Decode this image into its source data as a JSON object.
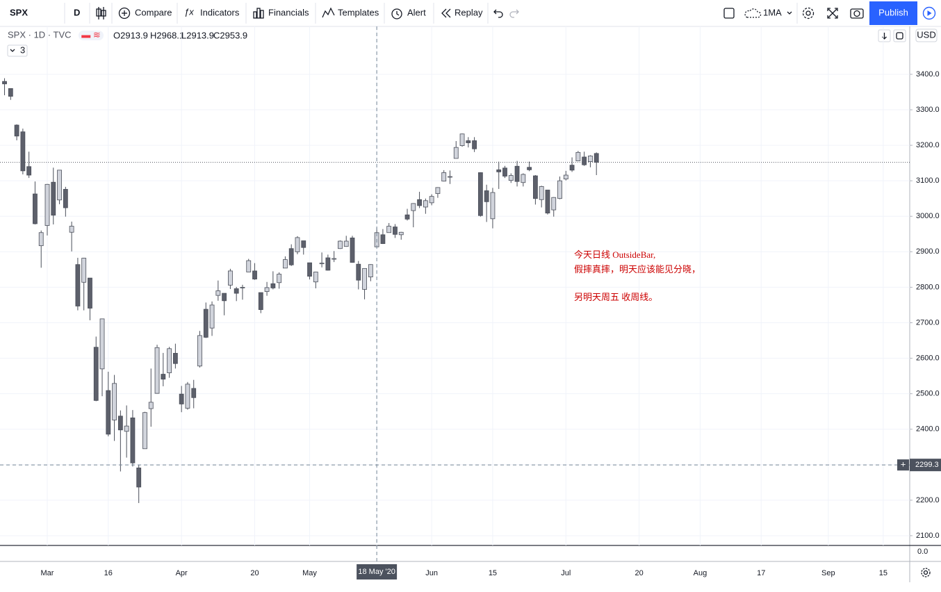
{
  "toolbar": {
    "symbol": "SPX",
    "interval": "D",
    "buttons": [
      "Compare",
      "Indicators",
      "Financials",
      "Templates",
      "Alert",
      "Replay"
    ],
    "indicator": "1MA",
    "publish": "Publish"
  },
  "legend": {
    "symbol_line": "SPX · 1D · TVC",
    "ohlc": [
      "O2913.9",
      "H2968.1",
      "L2913.9",
      "C2953.9"
    ],
    "collapse": "3"
  },
  "scale": {
    "currency": "USD"
  },
  "indicator_pane": {
    "ytick": {
      "value": 0,
      "label": "0.0"
    }
  },
  "chart_data": {
    "type": "candlestick",
    "categories": [
      null,
      null,
      null,
      null,
      null,
      null,
      null,
      "Mar",
      null,
      null,
      null,
      null,
      null,
      null,
      null,
      null,
      null,
      "16",
      null,
      null,
      null,
      null,
      null,
      null,
      null,
      null,
      null,
      null,
      null,
      "Apr",
      null,
      null,
      null,
      null,
      null,
      null,
      null,
      null,
      null,
      null,
      null,
      "20",
      null,
      null,
      null,
      null,
      null,
      null,
      null,
      null,
      "May",
      null,
      null,
      null,
      null,
      null,
      null,
      null,
      null,
      null,
      null,
      "18 May '20",
      null,
      null,
      null,
      null,
      null,
      null,
      null,
      null,
      "Jun",
      null,
      null,
      null,
      null,
      null,
      null,
      null,
      null,
      null,
      "15",
      null,
      null,
      null,
      null,
      null,
      null,
      null,
      null,
      null,
      null,
      null,
      "Jul",
      null,
      null,
      null,
      null,
      null,
      null,
      null,
      null,
      null,
      null,
      null,
      "20",
      null,
      null,
      null,
      null,
      null,
      null,
      null,
      null,
      null,
      "Aug",
      null,
      null,
      null,
      null,
      null,
      null,
      null,
      null,
      null,
      "17",
      null,
      null,
      null,
      null,
      null,
      null,
      null,
      null,
      null,
      null,
      "Sep",
      null,
      null,
      null,
      null,
      null,
      null,
      null,
      null,
      "15",
      null,
      null,
      null
    ],
    "open": [
      3380,
      3360,
      3257,
      3238,
      3140,
      3063,
      2917,
      2974,
      3096,
      3046,
      3076,
      2955,
      2864,
      2814,
      2826,
      2631,
      2570,
      2509,
      2426,
      2437,
      2394,
      2432,
      2291,
      2345,
      2458,
      2501,
      2555,
      2559,
      2614,
      2499,
      2459,
      2515,
      2578,
      2738,
      2685,
      2777,
      2783,
      2806,
      2796,
      2799,
      2843,
      2846,
      2785,
      2788,
      2810,
      2813,
      2854,
      2909,
      2900,
      2931,
      2869,
      2815,
      2868,
      2883,
      2879,
      2909,
      2915,
      2939,
      2865,
      2794,
      2829,
      2913.9,
      2948,
      2954,
      2970,
      2948,
      3004,
      3016,
      3047,
      3026,
      3038,
      3064,
      3099,
      3112,
      3163,
      3199,
      3213,
      3213,
      3123,
      3072,
      2993,
      3131,
      3136,
      3101,
      3141,
      3095,
      3138,
      3114,
      3047,
      3074,
      3018,
      3050,
      3105,
      3144,
      3156,
      3167,
      3154,
      3177,
      null,
      null,
      null,
      null,
      null,
      null,
      null,
      null,
      null,
      null,
      null,
      null,
      null,
      null,
      null,
      null,
      null,
      null,
      null,
      null,
      null,
      null,
      null,
      null,
      null,
      null,
      null,
      null,
      null,
      null,
      null,
      null,
      null,
      null,
      null,
      null,
      null,
      null,
      null,
      null,
      null,
      null,
      null,
      null,
      null,
      null,
      null,
      null,
      null,
      null
    ],
    "high": [
      3389,
      3360,
      3259,
      3247,
      3182,
      3098,
      2960,
      3091,
      3137,
      3130,
      3083,
      2985,
      2883,
      2883,
      2826,
      2661,
      2711,
      2562,
      2553,
      2453,
      2467,
      2454,
      2300,
      2449,
      2571,
      2638,
      2615,
      2632,
      2641,
      2522,
      2533,
      2539,
      2677,
      2757,
      2760,
      2819,
      2783,
      2852,
      2801,
      2807,
      2880,
      2868,
      2785,
      2815,
      2845,
      2842,
      2887,
      2921,
      2944,
      2931,
      2869,
      2844,
      2898,
      2892,
      2902,
      2932,
      2945,
      2945,
      2874,
      2852,
      2865,
      2968.1,
      2964,
      2981,
      2978,
      2956,
      3021,
      3037,
      3069,
      3050,
      3062,
      3082,
      3130,
      3129,
      3212,
      3233,
      3223,
      3223,
      3124,
      3089,
      3080,
      3154,
      3142,
      3121,
      3156,
      3121,
      3154,
      3116,
      3086,
      3074,
      3054,
      3112,
      3128,
      3166,
      3184,
      3182,
      3172,
      3180,
      null,
      null,
      null,
      null,
      null,
      null,
      null,
      null,
      null,
      null,
      null,
      null,
      null,
      null,
      null,
      null,
      null,
      null,
      null,
      null,
      null,
      null,
      null,
      null,
      null,
      null,
      null,
      null,
      null,
      null,
      null,
      null,
      null,
      null,
      null,
      null,
      null,
      null,
      null,
      null,
      null,
      null,
      null,
      null,
      null,
      null,
      null,
      null,
      null,
      null
    ],
    "low": [
      3341,
      3328,
      3214,
      3118,
      3108,
      2977,
      2855,
      2946,
      2977,
      3034,
      2999,
      2901,
      2735,
      2735,
      2707,
      2479,
      2493,
      2380,
      2367,
      2281,
      2320,
      2295,
      2192,
      2345,
      2407,
      2500,
      2521,
      2545,
      2571,
      2448,
      2455,
      2459,
      2574,
      2657,
      2663,
      2762,
      2721,
      2795,
      2761,
      2765,
      2843,
      2821,
      2727,
      2776,
      2794,
      2796,
      2854,
      2860,
      2893,
      2892,
      2822,
      2797,
      2856,
      2847,
      2871,
      2908,
      2914,
      2869,
      2794,
      2766,
      2817,
      2913.9,
      2922,
      2954,
      2939,
      2934,
      2988,
      2969,
      3023,
      3007,
      3031,
      3052,
      3098,
      3091,
      3163,
      3196,
      3194,
      3181,
      2999,
      2984,
      2966,
      3077,
      3108,
      3094,
      3084,
      3084,
      3127,
      3033,
      3025,
      3005,
      2999,
      3048,
      3101,
      3125,
      3156,
      3142,
      3138,
      3116,
      null,
      null,
      null,
      null,
      null,
      null,
      null,
      null,
      null,
      null,
      null,
      null,
      null,
      null,
      null,
      null,
      null,
      null,
      null,
      null,
      null,
      null,
      null,
      null,
      null,
      null,
      null,
      null,
      null,
      null,
      null,
      null,
      null,
      null,
      null,
      null,
      null,
      null,
      null,
      null,
      null,
      null,
      null,
      null,
      null,
      null,
      null,
      null,
      null,
      null
    ],
    "close": [
      3373,
      3338,
      3226,
      3128,
      3116,
      2979,
      2954,
      3090,
      3003,
      3130,
      3024,
      2972,
      2747,
      2882,
      2741,
      2481,
      2711,
      2386,
      2529,
      2398,
      2409,
      2305,
      2237,
      2447,
      2476,
      2630,
      2541,
      2627,
      2585,
      2471,
      2527,
      2489,
      2664,
      2659,
      2750,
      2790,
      2762,
      2846,
      2783,
      2800,
      2875,
      2823,
      2737,
      2799,
      2798,
      2837,
      2878,
      2863,
      2940,
      2912,
      2831,
      2843,
      2868,
      2848,
      2881,
      2930,
      2930,
      2870,
      2820,
      2853,
      2864,
      2953.9,
      2923,
      2972,
      2949,
      2955,
      2992,
      3036,
      3030,
      3044,
      3056,
      3081,
      3123,
      3112,
      3194,
      3232,
      3207,
      3190,
      3002,
      3041,
      3067,
      3125,
      3113,
      3115,
      3098,
      3118,
      3131,
      3050,
      3084,
      3009,
      3053,
      3100,
      3116,
      3130,
      3180,
      3145,
      3170,
      3152,
      null,
      null,
      null,
      null,
      null,
      null,
      null,
      null,
      null,
      null,
      null,
      null,
      null,
      null,
      null,
      null,
      null,
      null,
      null,
      null,
      null,
      null,
      null,
      null,
      null,
      null,
      null,
      null,
      null,
      null,
      null,
      null,
      null,
      null,
      null,
      null,
      null,
      null,
      null,
      null,
      null,
      null,
      null,
      null,
      null,
      null,
      null,
      null,
      null,
      null
    ],
    "ylim": [
      2072.5,
      3535
    ],
    "yticks": [
      {
        "value": 2100,
        "label": "2100.0"
      },
      {
        "value": 2200,
        "label": "2200.0"
      },
      {
        "value": 2300,
        "label": "2300.0"
      },
      {
        "value": 2400,
        "label": "2400.0"
      },
      {
        "value": 2500,
        "label": "2500.0"
      },
      {
        "value": 2600,
        "label": "2600.0"
      },
      {
        "value": 2700,
        "label": "2700.0"
      },
      {
        "value": 2800,
        "label": "2800.0"
      },
      {
        "value": 2900,
        "label": "2900.0"
      },
      {
        "value": 3000,
        "label": "3000.0"
      },
      {
        "value": 3100,
        "label": "3100.0"
      },
      {
        "value": 3200,
        "label": "3200.0"
      },
      {
        "value": 3300,
        "label": "3300.0"
      },
      {
        "value": 3400,
        "label": "3400.0"
      }
    ],
    "grid": true,
    "up_color": "#d1d4dc",
    "down_color": "#5d606b",
    "border_color": "#4a4e59",
    "crosshair": {
      "x": "18 May '20",
      "y": 2299.3
    },
    "annotations": [
      "今天日线 OutsideBar,",
      "假摔真摔，明天应该能见分晓，",
      "另明天周五 收周线。"
    ],
    "annotation_color": "#cc0000"
  }
}
